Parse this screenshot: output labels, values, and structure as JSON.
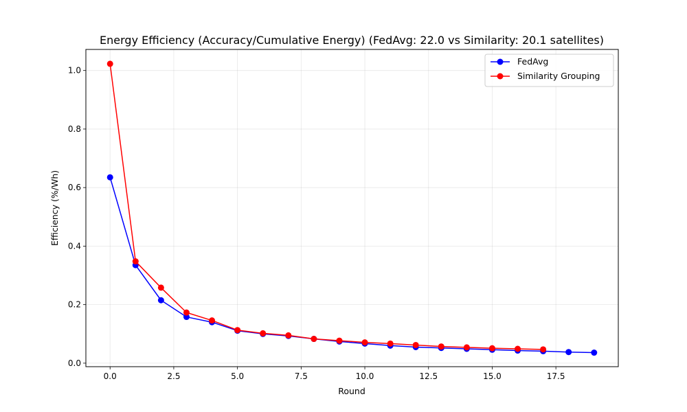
{
  "chart_data": {
    "type": "line",
    "title": "Energy Efficiency (Accuracy/Cumulative Energy) (FedAvg: 22.0 vs Similarity: 20.1 satellites)",
    "xlabel": "Round",
    "ylabel": "Efficiency (%/Wh)",
    "xlim": [
      -0.95,
      19.95
    ],
    "ylim": [
      -0.012,
      1.072
    ],
    "xticks": [
      0.0,
      2.5,
      5.0,
      7.5,
      10.0,
      12.5,
      15.0,
      17.5
    ],
    "xtick_labels": [
      "0.0",
      "2.5",
      "5.0",
      "7.5",
      "10.0",
      "12.5",
      "15.0",
      "17.5"
    ],
    "yticks": [
      0.0,
      0.2,
      0.4,
      0.6,
      0.8,
      1.0
    ],
    "ytick_labels": [
      "0.0",
      "0.2",
      "0.4",
      "0.6",
      "0.8",
      "1.0"
    ],
    "grid": true,
    "legend_position": "top-right",
    "series": [
      {
        "name": "FedAvg",
        "color": "#0000ff",
        "marker": "circle",
        "x": [
          0,
          1,
          2,
          3,
          4,
          5,
          6,
          7,
          8,
          9,
          10,
          11,
          12,
          13,
          14,
          15,
          16,
          17,
          18,
          19
        ],
        "y": [
          0.635,
          0.335,
          0.215,
          0.158,
          0.14,
          0.111,
          0.1,
          0.093,
          0.083,
          0.074,
          0.067,
          0.06,
          0.055,
          0.052,
          0.049,
          0.046,
          0.043,
          0.041,
          0.038,
          0.036
        ]
      },
      {
        "name": "Similarity Grouping",
        "color": "#ff0000",
        "marker": "circle",
        "x": [
          0,
          1,
          2,
          3,
          4,
          5,
          6,
          7,
          8,
          9,
          10,
          11,
          12,
          13,
          14,
          15,
          16,
          17
        ],
        "y": [
          1.023,
          0.348,
          0.258,
          0.173,
          0.146,
          0.113,
          0.102,
          0.095,
          0.083,
          0.077,
          0.071,
          0.067,
          0.062,
          0.057,
          0.054,
          0.051,
          0.049,
          0.047
        ]
      }
    ]
  }
}
